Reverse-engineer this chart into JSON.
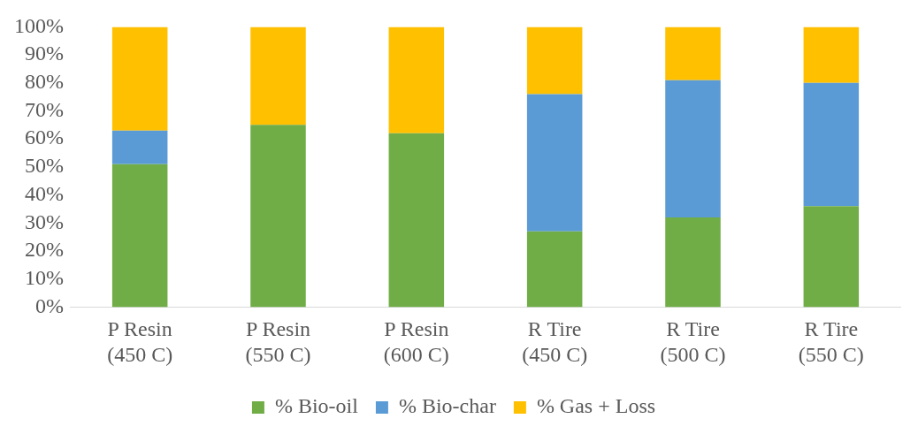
{
  "chart_data": {
    "type": "bar",
    "stacked": true,
    "categories": [
      "P Resin\n(450 C)",
      "P Resin\n(550 C)",
      "P Resin\n(600 C)",
      "R Tire\n(450 C)",
      "R Tire\n(500 C)",
      "R Tire\n(550 C)"
    ],
    "series": [
      {
        "name": "% Bio-oil",
        "color": "#70ad47",
        "values": [
          51,
          65,
          62,
          27,
          32,
          36
        ]
      },
      {
        "name": "% Bio-char",
        "color": "#5b9bd5",
        "values": [
          12,
          0,
          0,
          49,
          49,
          44
        ]
      },
      {
        "name": "% Gas + Loss",
        "color": "#ffc000",
        "values": [
          37,
          35,
          38,
          24,
          19,
          20
        ]
      }
    ],
    "ylim": [
      0,
      100
    ],
    "yticks": [
      {
        "value": 0,
        "label": "0%"
      },
      {
        "value": 10,
        "label": "10%"
      },
      {
        "value": 20,
        "label": "20%"
      },
      {
        "value": 30,
        "label": "30%"
      },
      {
        "value": 40,
        "label": "40%"
      },
      {
        "value": 50,
        "label": "50%"
      },
      {
        "value": 60,
        "label": "60%"
      },
      {
        "value": 70,
        "label": "70%"
      },
      {
        "value": 80,
        "label": "80%"
      },
      {
        "value": 90,
        "label": "90%"
      },
      {
        "value": 100,
        "label": "100%"
      }
    ],
    "grid": false,
    "legend": "bottom"
  }
}
